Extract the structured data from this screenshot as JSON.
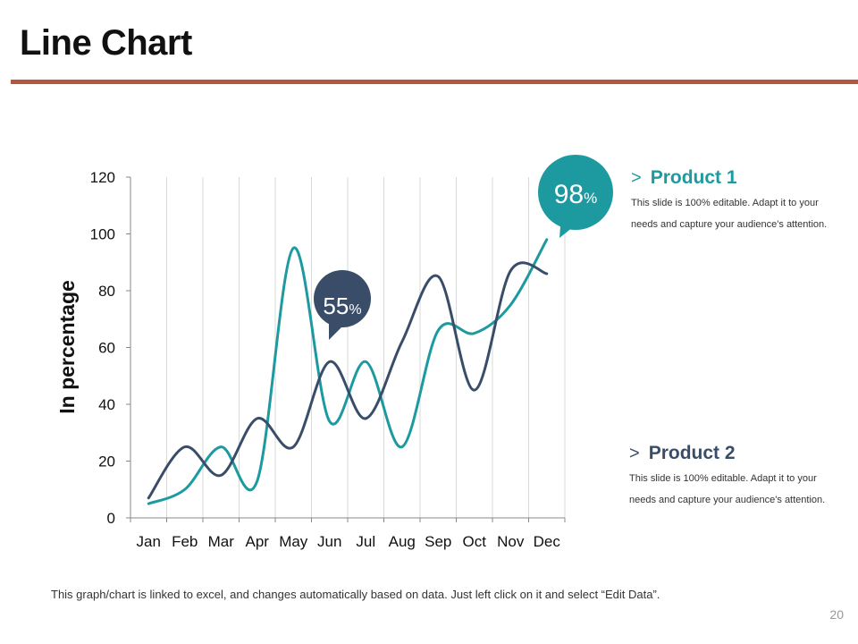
{
  "slide": {
    "title": "Line Chart",
    "footnote": "This graph/chart is linked to excel, and changes automatically  based on data. Just left click on it and select “Edit Data”.",
    "page_number": "20"
  },
  "legend": {
    "product1": {
      "chevron": ">",
      "name": "Product 1",
      "description": "This slide is 100% editable. Adapt it to your needs and capture your audience's attention."
    },
    "product2": {
      "chevron": ">",
      "name": "Product 2",
      "description": "This slide is 100% editable. Adapt it to your needs and capture your audience's attention."
    }
  },
  "callouts": {
    "c98": {
      "value": "98",
      "unit": "%"
    },
    "c55": {
      "value": "55",
      "unit": "%"
    }
  },
  "chart_data": {
    "type": "line",
    "title": "",
    "xlabel": "",
    "ylabel": "In percentage",
    "categories": [
      "Jan",
      "Feb",
      "Mar",
      "Apr",
      "May",
      "Jun",
      "Jul",
      "Aug",
      "Sep",
      "Oct",
      "Nov",
      "Dec"
    ],
    "ylim": [
      0,
      120
    ],
    "yticks": [
      0,
      20,
      40,
      60,
      80,
      100,
      120
    ],
    "grid": "vertical",
    "series": [
      {
        "name": "Product 1",
        "color": "#1c9aa0",
        "values": [
          5,
          10,
          25,
          13,
          95,
          34,
          55,
          25,
          66,
          65,
          75,
          98
        ]
      },
      {
        "name": "Product 2",
        "color": "#3a4d68",
        "values": [
          7,
          25,
          15,
          35,
          25,
          55,
          35,
          62,
          85,
          45,
          87,
          86
        ]
      }
    ]
  }
}
